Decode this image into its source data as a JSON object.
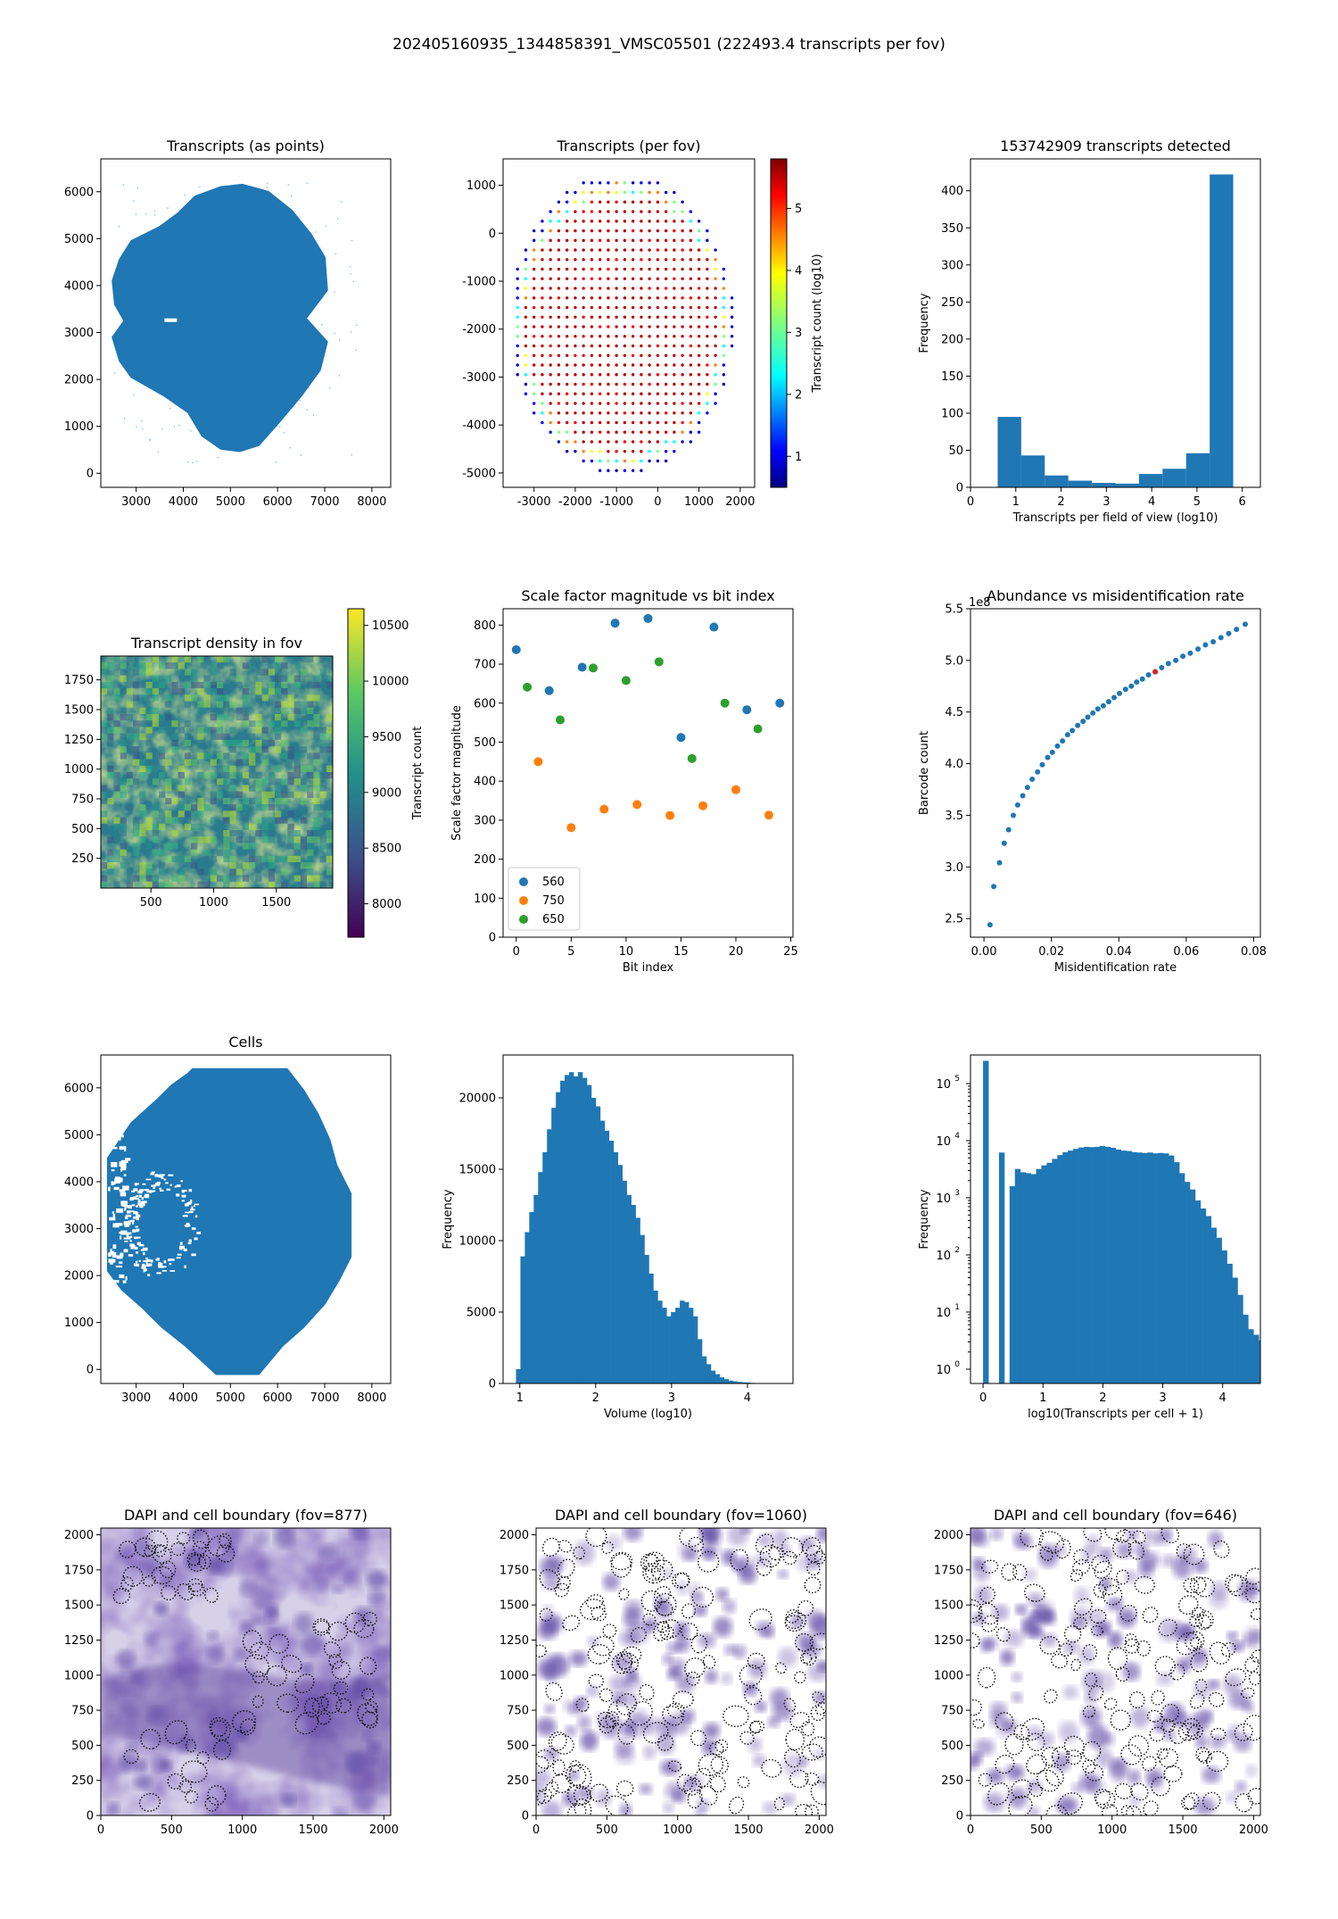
{
  "suptitle": "202405160935_1344858391_VMSC05501 (222493.4 transcripts per fov)",
  "colors": {
    "blue": "#1f77b4",
    "orange": "#ff7f0e",
    "green": "#2ca02c",
    "red": "#d62728",
    "dapi": "#3d2a8c"
  },
  "chart_data": [
    {
      "id": "p1",
      "type": "scatter",
      "title": "Transcripts (as points)",
      "xticks": [
        3000,
        4000,
        5000,
        6000,
        7000,
        8000
      ],
      "yticks": [
        0,
        1000,
        2000,
        3000,
        4000,
        5000,
        6000
      ],
      "xlim": [
        2250,
        8400
      ],
      "ylim": [
        -300,
        6700
      ],
      "shape_outline": [
        [
          2650,
          4550
        ],
        [
          2900,
          4950
        ],
        [
          3500,
          5250
        ],
        [
          3900,
          5550
        ],
        [
          4250,
          5900
        ],
        [
          4800,
          6100
        ],
        [
          5250,
          6150
        ],
        [
          5800,
          6000
        ],
        [
          6300,
          5600
        ],
        [
          6700,
          5100
        ],
        [
          7000,
          4600
        ],
        [
          7050,
          3900
        ],
        [
          6600,
          3300
        ],
        [
          7050,
          2800
        ],
        [
          6900,
          2200
        ],
        [
          6500,
          1650
        ],
        [
          6000,
          1050
        ],
        [
          5600,
          600
        ],
        [
          5200,
          470
        ],
        [
          4800,
          520
        ],
        [
          4400,
          800
        ],
        [
          4100,
          1300
        ],
        [
          3600,
          1650
        ],
        [
          2900,
          2050
        ],
        [
          2650,
          2400
        ],
        [
          2500,
          2900
        ],
        [
          2750,
          3250
        ],
        [
          2550,
          3600
        ],
        [
          2500,
          4100
        ]
      ],
      "xlabel": "",
      "ylabel": ""
    },
    {
      "id": "p2",
      "type": "scatter",
      "title": "Transcripts (per fov)",
      "xticks": [
        -3000,
        -2000,
        -1000,
        0,
        1000,
        2000
      ],
      "yticks": [
        -5000,
        -4000,
        -3000,
        -2000,
        -1000,
        0,
        1000
      ],
      "xlim": [
        -3750,
        2350
      ],
      "ylim": [
        -5300,
        1550
      ],
      "grid_extent": {
        "x": [
          -3600,
          1850
        ],
        "y": [
          -4950,
          1200
        ],
        "step": 200
      },
      "colorbar": {
        "label": "Transcript count (log10)",
        "ticks": [
          1,
          2,
          3,
          4,
          5
        ],
        "range": [
          0.5,
          5.8
        ],
        "colormap": "jet"
      }
    },
    {
      "id": "p3",
      "type": "bar",
      "title": "153742909 transcripts detected",
      "xlabel": "Transcripts per field of view (log10)",
      "ylabel": "Frequency",
      "bin_edges": [
        0.6,
        1.12,
        1.64,
        2.16,
        2.68,
        3.2,
        3.72,
        4.24,
        4.76,
        5.28,
        5.8
      ],
      "values": [
        95,
        43,
        16,
        9,
        6,
        5,
        18,
        25,
        46,
        422
      ],
      "xticks": [
        0,
        1,
        2,
        3,
        4,
        5,
        6
      ],
      "yticks": [
        0,
        50,
        100,
        150,
        200,
        250,
        300,
        350,
        400
      ],
      "xlim": [
        0,
        6.4
      ],
      "ylim": [
        0,
        443
      ]
    },
    {
      "id": "p4",
      "type": "heatmap",
      "title": "Transcript density in fov",
      "xticks": [
        500,
        1000,
        1500
      ],
      "yticks": [
        250,
        500,
        750,
        1000,
        1250,
        1500,
        1750
      ],
      "xlim": [
        100,
        1950
      ],
      "ylim": [
        0,
        1950
      ],
      "colorbar": {
        "label": "Transcript count",
        "ticks": [
          8000,
          8500,
          9000,
          9500,
          10000,
          10500
        ],
        "range": [
          7700,
          10650
        ],
        "colormap": "viridis"
      }
    },
    {
      "id": "p5",
      "type": "scatter",
      "title": "Scale factor magnitude vs bit index",
      "xlabel": "Bit index",
      "ylabel": "Scale factor magnitude",
      "xticks": [
        0,
        5,
        10,
        15,
        20,
        25
      ],
      "yticks": [
        0,
        100,
        200,
        300,
        400,
        500,
        600,
        700,
        800
      ],
      "xlim": [
        -1.2,
        25.2
      ],
      "ylim": [
        0,
        842
      ],
      "legend": {
        "position": "lower left"
      },
      "series": [
        {
          "name": "560",
          "color": "#1f77b4",
          "points": [
            [
              0,
              737
            ],
            [
              3,
              632
            ],
            [
              6,
              692
            ],
            [
              9,
              805
            ],
            [
              12,
              817
            ],
            [
              15,
              512
            ],
            [
              18,
              795
            ],
            [
              21,
              583
            ],
            [
              24,
              600
            ]
          ]
        },
        {
          "name": "750",
          "color": "#ff7f0e",
          "points": [
            [
              2,
              450
            ],
            [
              5,
              281
            ],
            [
              8,
              328
            ],
            [
              11,
              340
            ],
            [
              14,
              312
            ],
            [
              17,
              337
            ],
            [
              20,
              378
            ],
            [
              23,
              313
            ]
          ]
        },
        {
          "name": "650",
          "color": "#2ca02c",
          "points": [
            [
              1,
              641
            ],
            [
              4,
              557
            ],
            [
              7,
              690
            ],
            [
              10,
              658
            ],
            [
              13,
              706
            ],
            [
              16,
              458
            ],
            [
              19,
              600
            ],
            [
              22,
              534
            ]
          ]
        }
      ]
    },
    {
      "id": "p6",
      "type": "scatter",
      "title": "Abundance vs misidentification rate",
      "xlabel": "Misidentification rate",
      "ylabel": "Barcode count",
      "y_multiplier": "1e8",
      "xticks": [
        0.0,
        0.02,
        0.04,
        0.06,
        0.08
      ],
      "yticks": [
        2.5,
        3.0,
        3.5,
        4.0,
        4.5,
        5.0,
        5.5
      ],
      "xlim": [
        -0.004,
        0.082
      ],
      "ylim": [
        2.32,
        5.5
      ],
      "points": [
        [
          0.0018,
          2.44
        ],
        [
          0.0029,
          2.81
        ],
        [
          0.0046,
          3.04
        ],
        [
          0.006,
          3.23
        ],
        [
          0.0073,
          3.36
        ],
        [
          0.0087,
          3.5
        ],
        [
          0.01,
          3.6
        ],
        [
          0.0115,
          3.69
        ],
        [
          0.0129,
          3.77
        ],
        [
          0.0143,
          3.85
        ],
        [
          0.0159,
          3.92
        ],
        [
          0.0173,
          3.99
        ],
        [
          0.0189,
          4.06
        ],
        [
          0.0203,
          4.11
        ],
        [
          0.0218,
          4.17
        ],
        [
          0.0233,
          4.22
        ],
        [
          0.0248,
          4.28
        ],
        [
          0.0262,
          4.32
        ],
        [
          0.0278,
          4.37
        ],
        [
          0.0294,
          4.41
        ],
        [
          0.0308,
          4.45
        ],
        [
          0.0323,
          4.49
        ],
        [
          0.0338,
          4.53
        ],
        [
          0.0354,
          4.56
        ],
        [
          0.037,
          4.6
        ],
        [
          0.0386,
          4.64
        ],
        [
          0.0402,
          4.68
        ],
        [
          0.042,
          4.72
        ],
        [
          0.0437,
          4.75
        ],
        [
          0.0453,
          4.79
        ],
        [
          0.047,
          4.82
        ],
        [
          0.0488,
          4.86
        ],
        [
          0.0508,
          4.89
        ],
        [
          0.0527,
          4.93
        ],
        [
          0.0547,
          4.97
        ],
        [
          0.0569,
          5.0
        ],
        [
          0.059,
          5.04
        ],
        [
          0.0612,
          5.07
        ],
        [
          0.0635,
          5.11
        ],
        [
          0.0657,
          5.15
        ],
        [
          0.068,
          5.18
        ],
        [
          0.0703,
          5.22
        ],
        [
          0.0726,
          5.26
        ],
        [
          0.0749,
          5.3
        ],
        [
          0.0775,
          5.35
        ]
      ],
      "highlight_point": [
        0.0508,
        4.89
      ]
    },
    {
      "id": "p7",
      "type": "scatter",
      "title": "Cells",
      "xticks": [
        3000,
        4000,
        5000,
        6000,
        7000,
        8000
      ],
      "yticks": [
        0,
        1000,
        2000,
        3000,
        4000,
        5000,
        6000
      ],
      "xlim": [
        2250,
        8400
      ],
      "ylim": [
        -300,
        6700
      ],
      "shape_outline": [
        [
          4200,
          6400
        ],
        [
          6200,
          6400
        ],
        [
          6550,
          5950
        ],
        [
          6850,
          5450
        ],
        [
          7100,
          4900
        ],
        [
          7250,
          4350
        ],
        [
          7550,
          3750
        ],
        [
          7550,
          2400
        ],
        [
          7300,
          1900
        ],
        [
          7000,
          1400
        ],
        [
          6550,
          900
        ],
        [
          6100,
          500
        ],
        [
          5600,
          -100
        ],
        [
          4700,
          -100
        ],
        [
          4050,
          500
        ],
        [
          3550,
          900
        ],
        [
          3150,
          1300
        ],
        [
          2700,
          1700
        ],
        [
          2400,
          2100
        ],
        [
          2400,
          3700
        ],
        [
          2400,
          4500
        ],
        [
          2900,
          5250
        ],
        [
          3450,
          5750
        ],
        [
          3750,
          6050
        ],
        [
          4100,
          6300
        ]
      ]
    },
    {
      "id": "p8",
      "type": "bar",
      "title": "",
      "xlabel": "Volume (log10)",
      "ylabel": "Frequency",
      "bin_range": [
        0.95,
        4.45
      ],
      "values": [
        1000,
        8900,
        10600,
        12000,
        13200,
        14800,
        16200,
        17800,
        19300,
        20400,
        21200,
        21600,
        21800,
        21500,
        21800,
        21400,
        20900,
        20000,
        19400,
        18400,
        17700,
        17000,
        16200,
        15300,
        14200,
        13200,
        12500,
        11600,
        10400,
        9000,
        7700,
        6500,
        5800,
        5300,
        4700,
        5000,
        5300,
        5800,
        5700,
        5300,
        4700,
        3100,
        1900,
        1350,
        900,
        650,
        430,
        300,
        200,
        150,
        110,
        80,
        60,
        40,
        30,
        22,
        15,
        10,
        7,
        5
      ],
      "xticks": [
        1,
        2,
        3,
        4
      ],
      "yticks": [
        0,
        5000,
        10000,
        15000,
        20000
      ],
      "xlim": [
        0.78,
        4.6
      ],
      "ylim": [
        0,
        23000
      ]
    },
    {
      "id": "p9",
      "type": "bar",
      "title": "",
      "yscale": "log",
      "xlabel": "log10(Transcripts per cell + 1)",
      "ylabel": "Frequency",
      "bin_width": 0.0885,
      "first_edge": 0.0,
      "values": [
        250000,
        0,
        0,
        6200,
        0,
        1600,
        3200,
        2800,
        2700,
        2600,
        3200,
        3700,
        4100,
        4800,
        5600,
        6300,
        6700,
        7200,
        7600,
        7800,
        7700,
        7800,
        8100,
        7800,
        7500,
        7000,
        6700,
        6600,
        6300,
        6200,
        6100,
        6200,
        6000,
        6100,
        6000,
        5500,
        4200,
        2700,
        1900,
        1400,
        900,
        650,
        480,
        300,
        200,
        120,
        70,
        40,
        20,
        9,
        5,
        4,
        3.2,
        1,
        1,
        1
      ],
      "xticks": [
        0,
        1,
        2,
        3,
        4
      ],
      "yticks_labels": [
        "10^0",
        "10^1",
        "10^2",
        "10^3",
        "10^4",
        "10^5"
      ],
      "xlim": [
        -0.21,
        4.63
      ],
      "ylim_log": [
        -0.25,
        5.5
      ]
    },
    {
      "id": "p10",
      "type": "image",
      "title": "DAPI and cell boundary (fov=877)",
      "xticks": [
        0,
        500,
        1000,
        1500,
        2000
      ],
      "yticks": [
        0,
        250,
        500,
        750,
        1000,
        1250,
        1500,
        1750,
        2000
      ],
      "xlim": [
        0,
        2048
      ],
      "ylim": [
        0,
        2048
      ],
      "style": "dense"
    },
    {
      "id": "p11",
      "type": "image",
      "title": "DAPI and cell boundary (fov=1060)",
      "xticks": [
        0,
        500,
        1000,
        1500,
        2000
      ],
      "yticks": [
        0,
        250,
        500,
        750,
        1000,
        1250,
        1500,
        1750,
        2000
      ],
      "xlim": [
        0,
        2048
      ],
      "ylim": [
        0,
        2048
      ],
      "style": "sparse"
    },
    {
      "id": "p12",
      "type": "image",
      "title": "DAPI and cell boundary (fov=646)",
      "xticks": [
        0,
        500,
        1000,
        1500,
        2000
      ],
      "yticks": [
        0,
        250,
        500,
        750,
        1000,
        1250,
        1500,
        1750,
        2000
      ],
      "xlim": [
        0,
        2048
      ],
      "ylim": [
        0,
        2048
      ],
      "style": "sparse"
    }
  ]
}
